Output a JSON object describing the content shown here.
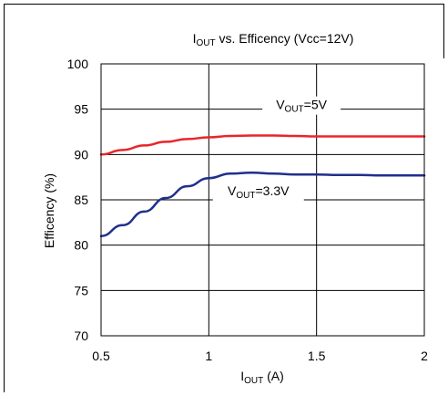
{
  "chart_data": {
    "type": "line",
    "title": {
      "main": "I",
      "sub": "OUT",
      "rest": "  vs. Efficency (Vcc=12V)"
    },
    "xlabel": {
      "main": "I",
      "sub": "OUT",
      "rest": " (A)"
    },
    "ylabel": "Efficency (%)",
    "xlim": [
      0.5,
      2
    ],
    "ylim": [
      70,
      100
    ],
    "x_ticks": [
      {
        "value": 0.5,
        "label": "0.5"
      },
      {
        "value": 1,
        "label": "1"
      },
      {
        "value": 1.5,
        "label": "1.5"
      },
      {
        "value": 2,
        "label": "2"
      }
    ],
    "y_ticks": [
      {
        "value": 70,
        "label": "70"
      },
      {
        "value": 75,
        "label": "75"
      },
      {
        "value": 80,
        "label": "80"
      },
      {
        "value": 85,
        "label": "85"
      },
      {
        "value": 90,
        "label": "90"
      },
      {
        "value": 95,
        "label": "95"
      },
      {
        "value": 100,
        "label": "100"
      }
    ],
    "grid": {
      "vertical": [
        1,
        1.5
      ],
      "horizontal": [
        75,
        80,
        85,
        90,
        95
      ]
    },
    "legend": "inline annotations",
    "series": [
      {
        "label": {
          "main": "V",
          "sub": "OUT",
          "rest": "=5V"
        },
        "color": "#e8262a",
        "label_x": 1.43,
        "label_y": 95,
        "x": [
          0.5,
          0.6,
          0.7,
          0.8,
          0.9,
          1.0,
          1.1,
          1.2,
          1.3,
          1.4,
          1.5,
          1.6,
          1.7,
          1.8,
          1.9,
          2.0
        ],
        "y": [
          90.0,
          90.5,
          91.0,
          91.4,
          91.7,
          91.9,
          92.05,
          92.1,
          92.1,
          92.05,
          92.0,
          92.0,
          92.0,
          92.0,
          92.0,
          92.0
        ]
      },
      {
        "label": {
          "main": "V",
          "sub": "OUT",
          "rest": "=3.3V"
        },
        "color": "#1f2f8c",
        "label_x": 1.23,
        "label_y": 85.5,
        "x": [
          0.5,
          0.6,
          0.7,
          0.8,
          0.9,
          1.0,
          1.1,
          1.2,
          1.3,
          1.4,
          1.5,
          1.6,
          1.7,
          1.8,
          1.9,
          2.0
        ],
        "y": [
          81.0,
          82.2,
          83.7,
          85.2,
          86.5,
          87.4,
          87.9,
          88.0,
          87.9,
          87.8,
          87.8,
          87.75,
          87.75,
          87.7,
          87.7,
          87.7
        ]
      }
    ]
  }
}
